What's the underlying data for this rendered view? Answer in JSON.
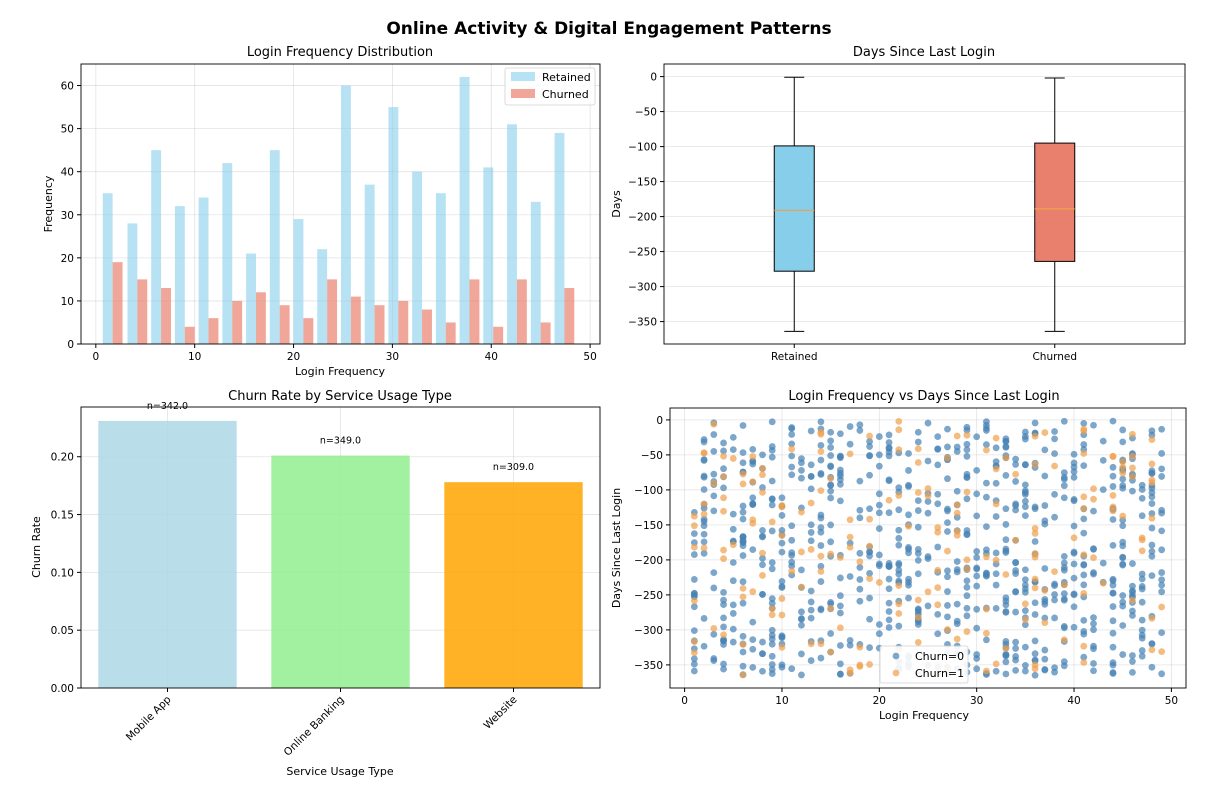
{
  "figure": {
    "title": "Online Activity & Digital Engagement Patterns"
  },
  "chart_data": [
    {
      "id": "hist",
      "type": "bar",
      "title": "Login Frequency Distribution",
      "xlabel": "Login Frequency",
      "ylabel": "Frequency",
      "xlim": [
        -1.5,
        51
      ],
      "ylim": [
        0,
        65
      ],
      "xticks": [
        0,
        10,
        20,
        30,
        40,
        50
      ],
      "yticks": [
        0,
        10,
        20,
        30,
        40,
        50,
        60
      ],
      "grid": true,
      "legend_position": "top-right",
      "bin_centers": [
        1.7,
        4.2,
        6.6,
        9.0,
        11.4,
        13.8,
        16.2,
        18.6,
        21.0,
        23.4,
        25.8,
        28.2,
        30.6,
        33.0,
        35.4,
        37.8,
        40.2,
        42.6,
        45.0,
        47.4
      ],
      "series": [
        {
          "name": "Retained",
          "color": "#87ceeb",
          "values": [
            35,
            28,
            45,
            32,
            34,
            42,
            21,
            45,
            29,
            22,
            60,
            37,
            55,
            40,
            35,
            62,
            41,
            51,
            33,
            49
          ]
        },
        {
          "name": "Churned",
          "color": "#e9806e",
          "values": [
            19,
            15,
            13,
            4,
            6,
            10,
            12,
            9,
            6,
            15,
            11,
            9,
            10,
            8,
            5,
            15,
            4,
            15,
            5,
            13
          ]
        }
      ]
    },
    {
      "id": "box",
      "type": "box",
      "title": "Days Since Last Login",
      "xlabel": "",
      "ylabel": "Days",
      "ylim": [
        -382,
        18
      ],
      "yticks": [
        0,
        -50,
        -100,
        -150,
        -200,
        -250,
        -300,
        -350
      ],
      "grid": true,
      "categories": [
        "Retained",
        "Churned"
      ],
      "boxes": [
        {
          "name": "Retained",
          "color": "#87ceeb",
          "min": -364,
          "q1": -278,
          "median": -191,
          "q3": -99,
          "max": -1
        },
        {
          "name": "Churned",
          "color": "#e9806e",
          "min": -364,
          "q1": -264,
          "median": -189,
          "q3": -95,
          "max": -2
        }
      ],
      "median_color": "#f0a04b"
    },
    {
      "id": "churn",
      "type": "bar",
      "title": "Churn Rate by Service Usage Type",
      "xlabel": "Service Usage Type",
      "ylabel": "Churn Rate",
      "ylim": [
        0,
        0.243
      ],
      "yticks": [
        0.0,
        0.05,
        0.1,
        0.15,
        0.2
      ],
      "ytick_labels": [
        "0.00",
        "0.05",
        "0.10",
        "0.15",
        "0.20"
      ],
      "grid": true,
      "categories": [
        "Mobile App",
        "Online Banking",
        "Website"
      ],
      "values": [
        0.231,
        0.201,
        0.178
      ],
      "colors": [
        "#add8e6",
        "#90ee90",
        "#ffa500"
      ],
      "annotations": [
        "n=342.0",
        "n=349.0",
        "n=309.0"
      ]
    },
    {
      "id": "scatter",
      "type": "scatter",
      "title": "Login Frequency vs Days Since Last Login",
      "xlabel": "Login Frequency",
      "ylabel": "Days Since Last Login",
      "xlim": [
        -1.5,
        51.5
      ],
      "ylim": [
        -383,
        17
      ],
      "xticks": [
        0,
        10,
        20,
        30,
        40,
        50
      ],
      "yticks": [
        0,
        -50,
        -100,
        -150,
        -200,
        -250,
        -300,
        -350
      ],
      "grid": true,
      "legend_position": "lower-center",
      "series": [
        {
          "name": "Churn=0",
          "color": "#4682b4",
          "count": 800
        },
        {
          "name": "Churn=1",
          "color": "#f0a04b",
          "count": 200
        }
      ],
      "x_range": [
        1,
        49
      ],
      "y_range": [
        -365,
        -1
      ]
    }
  ]
}
